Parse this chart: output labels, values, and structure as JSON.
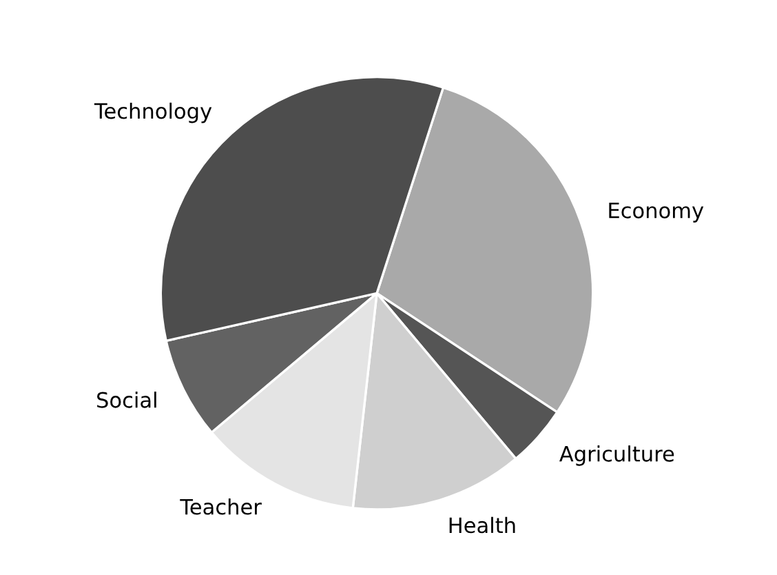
{
  "chart_data": {
    "type": "pie",
    "categories": [
      "Economy",
      "Agriculture",
      "Health",
      "Teacher",
      "Social",
      "Technology"
    ],
    "values": [
      29.3,
      4.6,
      12.9,
      12.1,
      7.6,
      33.5
    ],
    "colors": [
      "#a9a9a9",
      "#555555",
      "#cfcfcf",
      "#e4e4e4",
      "#626262",
      "#4d4d4d"
    ],
    "legend": false
  }
}
